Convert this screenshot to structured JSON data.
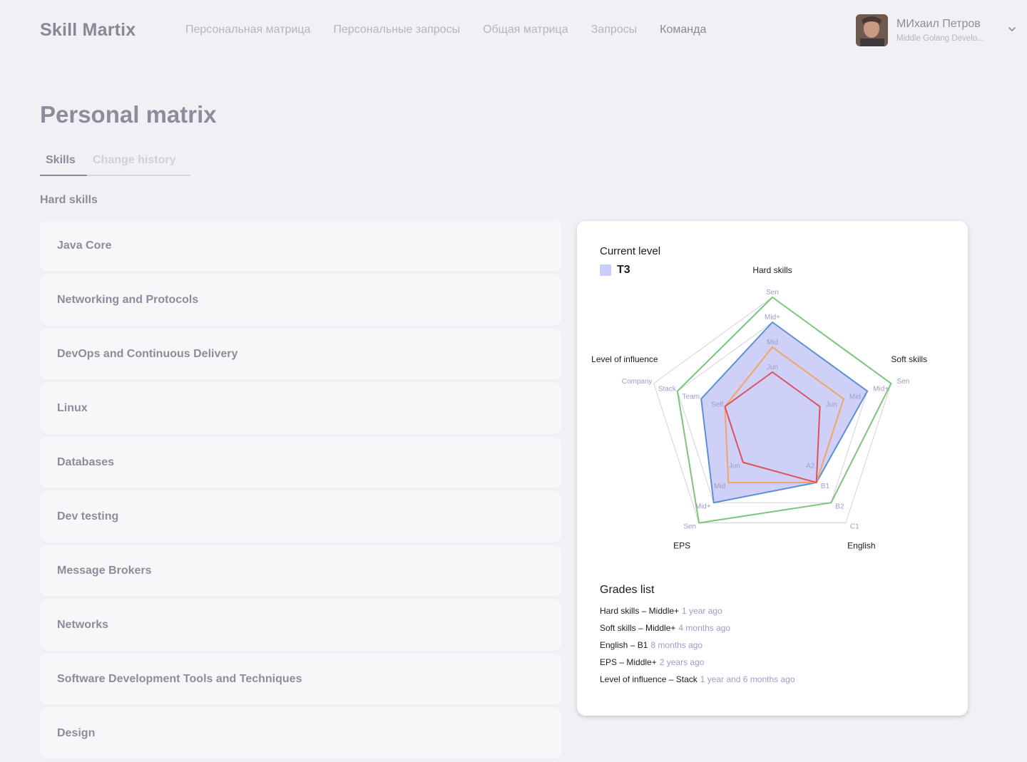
{
  "header": {
    "logo": "Skill Martix",
    "nav": [
      {
        "label": "Персональная матрица",
        "active": false
      },
      {
        "label": "Персональные запросы",
        "active": false
      },
      {
        "label": "Общая матрица",
        "active": false
      },
      {
        "label": "Запросы",
        "active": false
      },
      {
        "label": "Команда",
        "active": true
      }
    ],
    "user": {
      "name": "МИхаил Петров",
      "role": "Middle Golang Develo..."
    }
  },
  "page": {
    "title": "Personal matrix",
    "tabs": [
      {
        "label": "Skills",
        "active": true
      },
      {
        "label": "Change history",
        "active": false
      }
    ],
    "section_title": "Hard skills",
    "skills": [
      "Java Core",
      "Networking and Protocols",
      "DevOps and Continuous Delivery",
      "Linux",
      "Databases",
      "Dev testing",
      "Message Brokers",
      "Networks",
      "Software Development Tools and Techniques",
      "Design"
    ]
  },
  "chart_card": {
    "title": "Current level",
    "legend_label": "Т3",
    "legend_color": "#cbcdf8",
    "grades_title": "Grades list",
    "grades": [
      {
        "label": "Hard skills – Middle+",
        "time": "1 year ago"
      },
      {
        "label": "Soft skills – Middle+",
        "time": "4 months ago"
      },
      {
        "label": "English – B1",
        "time": "8 months ago"
      },
      {
        "label": "EPS – Middle+",
        "time": "2 years ago"
      },
      {
        "label": "Level of influence – Stack",
        "time": "1 year and 6 months ago"
      }
    ]
  },
  "chart_data": {
    "type": "radar",
    "axes": [
      "Hard skills",
      "Soft skills",
      "English",
      "EPS",
      "Level of influence"
    ],
    "axis_levels": [
      [
        "Jun",
        "Mid",
        "Mid+",
        "Sen"
      ],
      [
        "Jun",
        "Mid",
        "Mid+",
        "Sen"
      ],
      [
        "A2",
        "B1",
        "B2",
        "C1"
      ],
      [
        "Jun",
        "Mid",
        "Mid+",
        "Sen"
      ],
      [
        "Self",
        "Team",
        "Stack",
        "Company"
      ]
    ],
    "scale_max": 5,
    "series": [
      {
        "name": "",
        "values": [
          5,
          5,
          4,
          5,
          4
        ],
        "color": "#7dc47c",
        "fill": false
      },
      {
        "name": "",
        "values": [
          4,
          4,
          3,
          4,
          3
        ],
        "color": "#5b8fd6",
        "fill": true,
        "fill_color": "#cbcdf8"
      },
      {
        "name": "",
        "values": [
          3,
          3,
          3,
          3,
          2
        ],
        "color": "#f2a463",
        "fill": false
      },
      {
        "name": "",
        "values": [
          2,
          2,
          3,
          2,
          2
        ],
        "color": "#e0505c",
        "fill": false
      }
    ],
    "grid_color": "#c9c9d1",
    "level_label_color": "#9e9cc8"
  }
}
